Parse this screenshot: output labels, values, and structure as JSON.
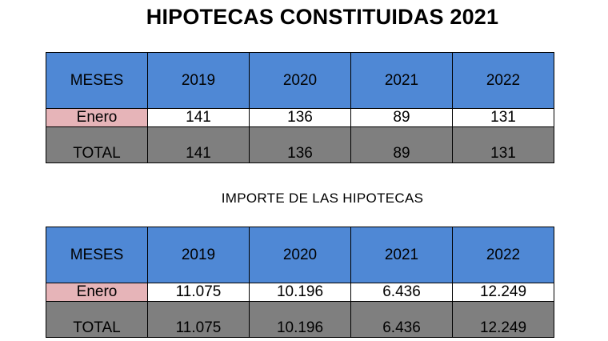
{
  "title": "HIPOTECAS CONSTITUIDAS 2021",
  "subtitle": "IMPORTE DE LAS HIPOTECAS",
  "table1": {
    "header": [
      "MESES",
      "2019",
      "2020",
      "2021",
      "2022"
    ],
    "row": [
      "Enero",
      "141",
      "136",
      "89",
      "131"
    ],
    "total": [
      "TOTAL",
      "141",
      "136",
      "89",
      "131"
    ]
  },
  "table2": {
    "header": [
      "MESES",
      "2019",
      "2020",
      "2021",
      "2022"
    ],
    "row": [
      "Enero",
      "11.075",
      "10.196",
      "6.436",
      "12.249"
    ],
    "total": [
      "TOTAL",
      "11.075",
      "10.196",
      "6.436",
      "12.249"
    ]
  },
  "colors": {
    "header_bg": "#4f88d5",
    "month_label_bg": "#e6b4b8",
    "total_bg": "#7f7f7f"
  }
}
